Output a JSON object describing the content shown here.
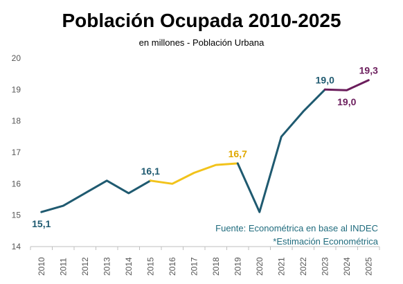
{
  "chart_data": {
    "type": "line",
    "title": "Población Ocupada 2010-2025",
    "subtitle": "en millones - Población Urbana",
    "x": [
      "2010",
      "2011",
      "2012",
      "2013",
      "2014",
      "2015",
      "2016",
      "2017",
      "2018",
      "2019",
      "2020",
      "2021",
      "2022",
      "2023",
      "2024",
      "2025"
    ],
    "y": [
      15.1,
      15.3,
      15.7,
      16.1,
      15.7,
      16.1,
      16.0,
      16.35,
      16.6,
      16.65,
      15.1,
      17.5,
      18.3,
      19.0,
      18.98,
      19.3
    ],
    "segments": [
      {
        "from": 0,
        "to": 5,
        "color": "#1f5a70"
      },
      {
        "from": 5,
        "to": 9,
        "color": "#f2c31b"
      },
      {
        "from": 9,
        "to": 13,
        "color": "#1f5a70"
      },
      {
        "from": 13,
        "to": 15,
        "color": "#6b1d5c"
      }
    ],
    "data_labels": [
      {
        "index": 0,
        "text": "15,1",
        "color": "#1f5a70",
        "position": "below"
      },
      {
        "index": 5,
        "text": "16,1",
        "color": "#1f5a70",
        "position": "above"
      },
      {
        "index": 9,
        "text": "16,7",
        "color": "#e0a800",
        "position": "above"
      },
      {
        "index": 13,
        "text": "19,0",
        "color": "#1f5a70",
        "position": "above"
      },
      {
        "index": 14,
        "text": "19,0",
        "color": "#6b1d5c",
        "position": "below"
      },
      {
        "index": 15,
        "text": "19,3",
        "color": "#6b1d5c",
        "position": "above"
      }
    ],
    "ylim": [
      14,
      20
    ],
    "yticks": [
      14,
      15,
      16,
      17,
      18,
      19,
      20
    ],
    "grid": false
  },
  "notes": {
    "source": "Fuente: Econométrica en base al INDEC",
    "estimate": "*Estimación Econométrica"
  }
}
